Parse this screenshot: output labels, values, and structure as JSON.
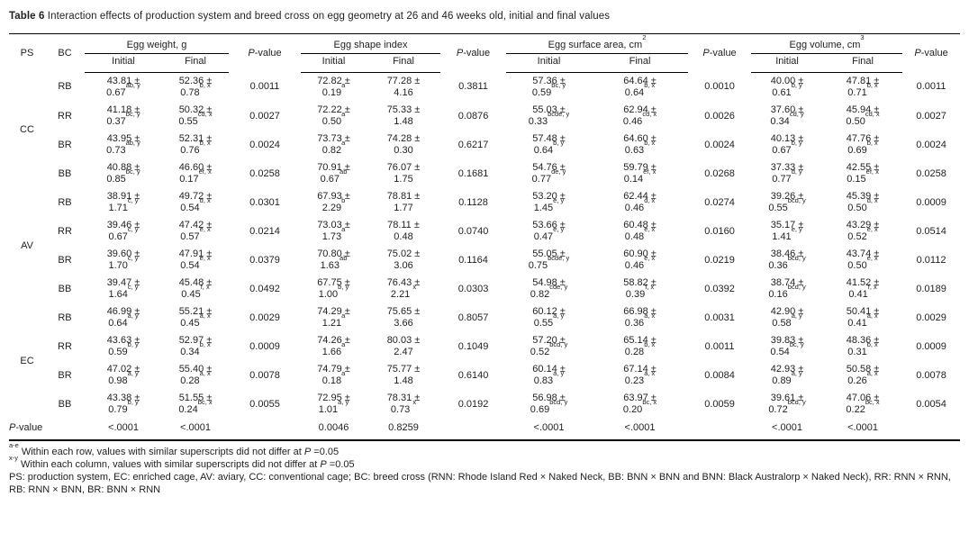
{
  "title": {
    "label": "Table 6",
    "text": " Interaction effects of production system and breed cross on egg geometry at 26 and 46 weeks old, initial and final values"
  },
  "headers": {
    "ps": "PS",
    "bc": "BC",
    "initial": "Initial",
    "final": "Final",
    "p_italic": "P",
    "p_rest": "-value"
  },
  "group_headers": {
    "g1": {
      "label": "Egg weight, g",
      "sup": ""
    },
    "g2": {
      "label": "Egg shape index",
      "sup": ""
    },
    "g3": {
      "label": "Egg surface area, cm",
      "sup": "2"
    },
    "g4": {
      "label": "Egg volume, cm",
      "sup": "3"
    }
  },
  "table": {
    "groups": [
      {
        "ps": "CC",
        "rows": [
          {
            "bc": "RB",
            "cells": [
              [
                "43.81 ±",
                "0.67",
                "ab, y"
              ],
              [
                "52.36 ±",
                "0.78",
                "b, x"
              ],
              "0.0011",
              [
                "72.82 ±",
                "0.19",
                "a"
              ],
              [
                "77.28 ±",
                "4.16",
                ""
              ],
              "0.3811",
              [
                "57.36 ±",
                "0.59",
                "bc, y"
              ],
              [
                "64.64 ±",
                "0.64",
                "b, x"
              ],
              "0.0010",
              [
                "40.00 ±",
                "0.61",
                "b, y"
              ],
              [
                "47.81 ±",
                "0.71",
                "b, x"
              ],
              "0.0011"
            ]
          },
          {
            "bc": "RR",
            "cells": [
              [
                "41.18 ±",
                "0.37",
                "bc, y"
              ],
              [
                "50.32 ±",
                "0.55",
                "cd, x"
              ],
              "0.0027",
              [
                "72.22 ±",
                "0.50",
                "a"
              ],
              [
                "75.33 ±",
                "1.48",
                ""
              ],
              "0.0876",
              [
                "55.03 ±",
                "0.33",
                "bcde, y"
              ],
              [
                "62.94 ±",
                "0.46",
                "cd, x"
              ],
              "0.0026",
              [
                "37.60 ±",
                "0.34",
                "cd, y"
              ],
              [
                "45.94 ±",
                "0.50",
                "cd, x"
              ],
              "0.0027"
            ]
          },
          {
            "bc": "BR",
            "cells": [
              [
                "43.95 ±",
                "0.73",
                "ab, y"
              ],
              [
                "52.31 ±",
                "0.76",
                "b, x"
              ],
              "0.0024",
              [
                "73.73 ±",
                "0.82",
                "a"
              ],
              [
                "74.28 ±",
                "0.30",
                ""
              ],
              "0.6217",
              [
                "57.48 ±",
                "0.64",
                "b, y"
              ],
              [
                "64.60 ±",
                "0.63",
                "b, x"
              ],
              "0.0024",
              [
                "40.13 ±",
                "0.67",
                "b, y"
              ],
              [
                "47.76 ±",
                "0.69",
                "b, x"
              ],
              "0.0024"
            ]
          },
          {
            "bc": "BB",
            "cells": [
              [
                "40.88 ±",
                "0.85",
                "bc, y"
              ],
              [
                "46.60 ±",
                "0.17",
                "ef, x"
              ],
              "0.0258",
              [
                "70.91 ±",
                "0.67",
                "ab"
              ],
              [
                "76.07 ±",
                "1.75",
                ""
              ],
              "0.1681",
              [
                "54.76 ±",
                "0.77",
                "de, y"
              ],
              [
                "59.79 ±",
                "0.14",
                "ef, x"
              ],
              "0.0268",
              [
                "37.33 ±",
                "0.77",
                "d, y"
              ],
              [
                "42.55 ±",
                "0.15",
                "ef, x"
              ],
              "0.0258"
            ]
          }
        ]
      },
      {
        "ps": "AV",
        "rows": [
          {
            "bc": "RB",
            "cells": [
              [
                "38.91 ±",
                "1.71",
                "c, y"
              ],
              [
                "49.72 ±",
                "0.54",
                "d, x"
              ],
              "0.0301",
              [
                "67.93 ±",
                "2.29",
                "b"
              ],
              [
                "78.81 ±",
                "1.77",
                ""
              ],
              "0.1128",
              [
                "53.20 ±",
                "1.45",
                "e, y"
              ],
              [
                "62.44 ±",
                "0.46",
                "d, x"
              ],
              "0.0274",
              [
                "39.26 ±",
                "0.55",
                "bcd, y"
              ],
              [
                "45.39 ±",
                "0.50",
                "d, x"
              ],
              "0.0009"
            ]
          },
          {
            "bc": "RR",
            "cells": [
              [
                "39.46 ±",
                "0.67",
                "c, y"
              ],
              [
                "47.42 ±",
                "0.57",
                "e, x"
              ],
              "0.0214",
              [
                "73.03 ±",
                "1.73",
                "a"
              ],
              [
                "78.11 ±",
                "0.48",
                ""
              ],
              "0.0740",
              [
                "53.66 ±",
                "0.47",
                "e, y"
              ],
              [
                "60.48 ±",
                "0.48",
                "e, x"
              ],
              "0.0160",
              [
                "35.17 ±",
                "1.41",
                "e, y"
              ],
              [
                "43.29 ±",
                "0.52",
                "e, x"
              ],
              "0.0514"
            ]
          },
          {
            "bc": "BR",
            "cells": [
              [
                "39.60 ±",
                "1.70",
                "c, y"
              ],
              [
                "47.91 ±",
                "0.54",
                "e, x"
              ],
              "0.0379",
              [
                "70.80 ±",
                "1.63",
                "ab"
              ],
              [
                "75.02 ±",
                "3.06",
                ""
              ],
              "0.1164",
              [
                "55.05 ±",
                "0.75",
                "bcde, y"
              ],
              [
                "60.90 ±",
                "0.46",
                "e, x"
              ],
              "0.0219",
              [
                "38.46 ±",
                "0.36",
                "bcd, y"
              ],
              [
                "43.74 ±",
                "0.50",
                "e, x"
              ],
              "0.0112"
            ]
          },
          {
            "bc": "BB",
            "cells": [
              [
                "39.47 ±",
                "1.64",
                "c, y"
              ],
              [
                "45.48 ±",
                "0.45",
                "f, x"
              ],
              "0.0492",
              [
                "67.75 ±",
                "1.00",
                "b, y"
              ],
              [
                "76.43 ±",
                "2.21 ",
                "x"
              ],
              "0.0303",
              [
                "54.98 ±",
                "0.82",
                "cde, y"
              ],
              [
                "58.82 ±",
                "0.39",
                "f, x"
              ],
              "0.0392",
              [
                "38.74 ±",
                "0.16",
                "bcd, y"
              ],
              [
                "41.52 ±",
                "0.41",
                "f, x"
              ],
              "0.0189"
            ]
          }
        ]
      },
      {
        "ps": "EC",
        "rows": [
          {
            "bc": "RB",
            "cells": [
              [
                "46.99 ±",
                "0.64",
                "a, y"
              ],
              [
                "55.21 ±",
                "0.45",
                "a, x"
              ],
              "0.0029",
              [
                "74.29 ±",
                "1.21",
                "a"
              ],
              [
                "75.65 ±",
                "3.66",
                ""
              ],
              "0.8057",
              [
                "60.12 ±",
                "0.55",
                "a, y"
              ],
              [
                "66.98 ±",
                "0.36",
                "a, x"
              ],
              "0.0031",
              [
                "42.90 ±",
                "0.58",
                "a, y"
              ],
              [
                "50.41 ±",
                "0.41",
                "a, x"
              ],
              "0.0029"
            ]
          },
          {
            "bc": "RR",
            "cells": [
              [
                "43.63 ±",
                "0.59",
                "b, y"
              ],
              [
                "52.97 ±",
                "0.34",
                "b, x"
              ],
              "0.0009",
              [
                "74.26 ±",
                "1.66",
                "a"
              ],
              [
                "80.03 ±",
                "2.47",
                ""
              ],
              "0.1049",
              [
                "57.20 ±",
                "0.52",
                "bcd, y"
              ],
              [
                "65.14 ±",
                "0.28",
                "b, x"
              ],
              "0.0011",
              [
                "39.83 ±",
                "0.54",
                "bc, y"
              ],
              [
                "48.36 ±",
                "0.31",
                "b, x"
              ],
              "0.0009"
            ]
          },
          {
            "bc": "BR",
            "cells": [
              [
                "47.02 ±",
                "0.98",
                "a, y"
              ],
              [
                "55.40 ±",
                "0.28",
                "a, x"
              ],
              "0.0078",
              [
                "74.79 ±",
                "0.18",
                "a"
              ],
              [
                "75.77 ±",
                "1.48",
                ""
              ],
              "0.6140",
              [
                "60.14 ±",
                "0.83",
                "a, y"
              ],
              [
                "67.14 ±",
                "0.23",
                "a, x"
              ],
              "0.0084",
              [
                "42.93 ±",
                "0.89",
                "a, y"
              ],
              [
                "50.58 ±",
                "0.26",
                "a, x"
              ],
              "0.0078"
            ]
          },
          {
            "bc": "BB",
            "cells": [
              [
                "43.38 ±",
                "0.79",
                "b, y"
              ],
              [
                "51.55 ±",
                "0.24",
                "bc, x"
              ],
              "0.0055",
              [
                "72.95 ±",
                "1.01",
                "a, y"
              ],
              [
                "78.31 ±",
                "0.73 ",
                "x"
              ],
              "0.0192",
              [
                "56.98 ±",
                "0.69",
                "bcd, y"
              ],
              [
                "63.97 ±",
                "0.20",
                "bc, x"
              ],
              "0.0059",
              [
                "39.61 ±",
                "0.72",
                "bcd, y"
              ],
              [
                "47.06 ±",
                "0.22",
                "bc, x"
              ],
              "0.0054"
            ]
          }
        ]
      }
    ],
    "bottom": [
      "<.0001",
      "<.0001",
      "",
      "0.0046",
      "0.8259",
      "",
      "<.0001",
      "<.0001",
      "",
      "<.0001",
      "<.0001",
      ""
    ]
  },
  "footnotes": {
    "fn1": {
      "sup": "a-e",
      "text": "Within each row, values with similar superscripts did not differ at ",
      "p": "P",
      "rest": " =0.05"
    },
    "fn2": {
      "sup": "x-y",
      "text": "Within each column, values with similar superscripts did not differ at ",
      "p": "P",
      "rest": " =0.05"
    },
    "fn3": "PS: production system, EC: enriched cage, AV: aviary, CC: conventional cage; BC: breed cross (RNN: Rhode Island Red × Naked Neck, BB: BNN × BNN and BNN: Black Australorp × Naked Neck), RR: RNN × RNN, RB: RNN × BNN, BR: BNN × RNN"
  }
}
